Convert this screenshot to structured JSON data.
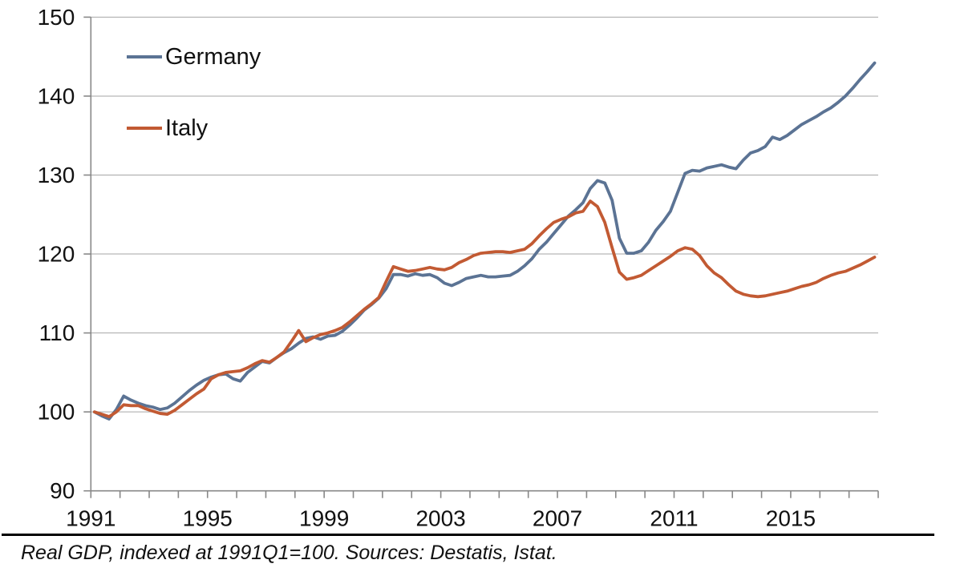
{
  "chart_data": {
    "type": "line",
    "title": "",
    "frequency": "quarterly",
    "x_start": "1991Q1",
    "x_end": "2017Q4",
    "xlim": [
      1991,
      2018
    ],
    "ylim": [
      90,
      150
    ],
    "yticks": [
      90,
      100,
      110,
      120,
      130,
      140,
      150
    ],
    "xtick_years": [
      1991,
      1995,
      1999,
      2003,
      2007,
      2011,
      2015
    ],
    "xtick_labels": [
      "1991",
      "1995",
      "1999",
      "2003",
      "2007",
      "2011",
      "2015"
    ],
    "grid": "horizontal",
    "legend_position": "top-left-inside",
    "series": [
      {
        "name": "Germany",
        "color": "#5B7394",
        "values": [
          100.0,
          99.5,
          99.1,
          100.3,
          102.0,
          101.5,
          101.1,
          100.8,
          100.6,
          100.3,
          100.5,
          101.1,
          101.9,
          102.7,
          103.4,
          104.0,
          104.4,
          104.7,
          104.8,
          104.2,
          103.9,
          105.0,
          105.7,
          106.4,
          106.2,
          106.9,
          107.5,
          108.0,
          108.7,
          109.3,
          109.5,
          109.2,
          109.6,
          109.7,
          110.2,
          111.0,
          111.9,
          112.9,
          113.6,
          114.4,
          115.6,
          117.4,
          117.4,
          117.2,
          117.5,
          117.3,
          117.4,
          117.0,
          116.3,
          116.0,
          116.4,
          116.9,
          117.1,
          117.3,
          117.1,
          117.1,
          117.2,
          117.3,
          117.8,
          118.5,
          119.4,
          120.6,
          121.5,
          122.6,
          123.7,
          124.8,
          125.6,
          126.5,
          128.3,
          129.3,
          129.0,
          126.8,
          122.0,
          120.1,
          120.1,
          120.4,
          121.5,
          123.0,
          124.1,
          125.4,
          127.8,
          130.2,
          130.6,
          130.5,
          130.9,
          131.1,
          131.3,
          131.0,
          130.8,
          131.9,
          132.8,
          133.1,
          133.6,
          134.8,
          134.5,
          135.0,
          135.7,
          136.4,
          136.9,
          137.4,
          138.0,
          138.5,
          139.2,
          140.0,
          141.0,
          142.1,
          143.1,
          144.2
        ]
      },
      {
        "name": "Italy",
        "color": "#C25A33",
        "values": [
          100.0,
          99.7,
          99.4,
          100.0,
          100.9,
          100.8,
          100.8,
          100.4,
          100.1,
          99.8,
          99.7,
          100.2,
          100.9,
          101.6,
          102.3,
          102.9,
          104.2,
          104.7,
          105.0,
          105.1,
          105.2,
          105.6,
          106.1,
          106.5,
          106.3,
          106.9,
          107.6,
          108.9,
          110.3,
          108.9,
          109.4,
          109.8,
          110.0,
          110.3,
          110.7,
          111.4,
          112.2,
          113.0,
          113.7,
          114.5,
          116.5,
          118.4,
          118.1,
          117.8,
          117.9,
          118.1,
          118.3,
          118.1,
          118.0,
          118.3,
          118.9,
          119.3,
          119.8,
          120.1,
          120.2,
          120.3,
          120.3,
          120.2,
          120.4,
          120.6,
          121.3,
          122.3,
          123.2,
          124.0,
          124.4,
          124.7,
          125.2,
          125.4,
          126.7,
          126.0,
          124.0,
          120.8,
          117.7,
          116.8,
          117.0,
          117.3,
          117.9,
          118.5,
          119.1,
          119.7,
          120.4,
          120.8,
          120.6,
          119.8,
          118.5,
          117.6,
          117.0,
          116.1,
          115.3,
          114.9,
          114.7,
          114.6,
          114.7,
          114.9,
          115.1,
          115.3,
          115.6,
          115.9,
          116.1,
          116.4,
          116.9,
          117.3,
          117.6,
          117.8,
          118.2,
          118.6,
          119.1,
          119.6
        ]
      }
    ],
    "caption": "Real GDP, indexed at 1991Q1=100. Sources: Destatis, Istat."
  },
  "style": {
    "grid_color": "#A6A6A6",
    "axis_color": "#888888",
    "label_color": "#111111",
    "line_width": 3.8
  }
}
